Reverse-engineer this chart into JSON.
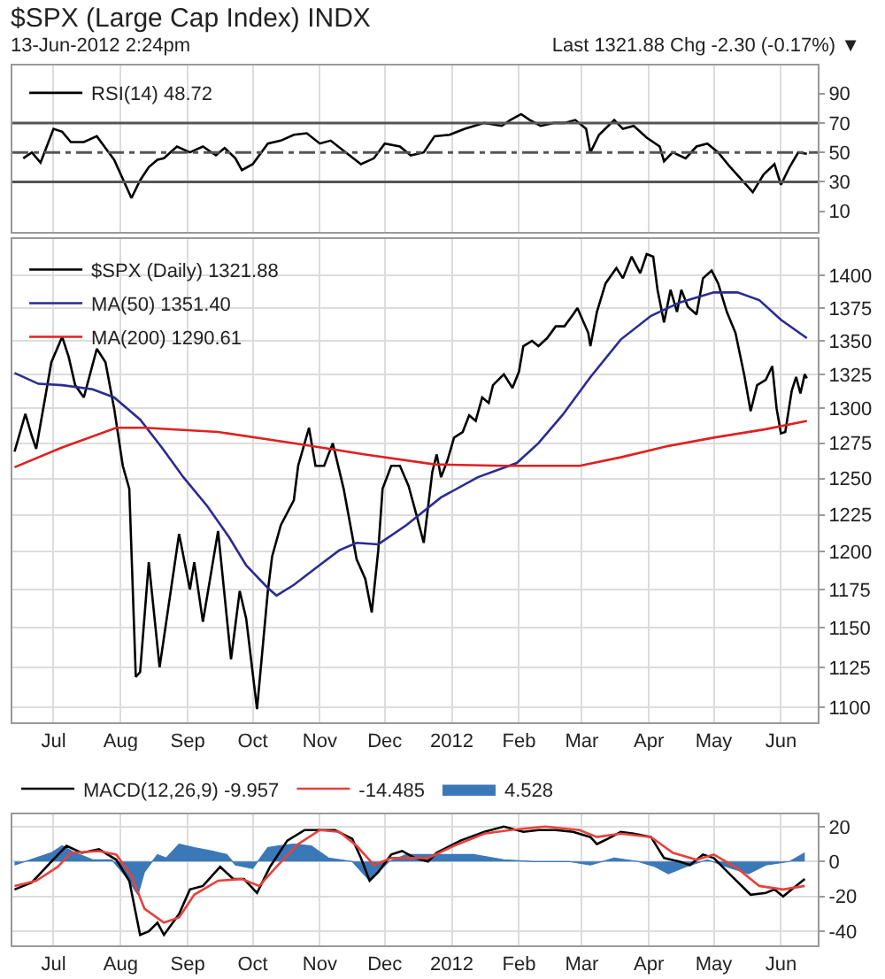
{
  "chart_data": [
    {
      "type": "line",
      "title": "$SPX (Large Cap Index) INDX",
      "subtitle": "13-Jun-2012 2:24pm",
      "annotations": [
        "Last 1321.88  Chg -2.30 (-0.17%) ▼"
      ],
      "xlim": [
        "2011-06-12",
        "2012-06-18"
      ],
      "xticks": [
        {
          "value": "2011-07-01",
          "label": null
        },
        {
          "value": "2011-08-01",
          "label": null
        },
        {
          "value": "2011-09-01",
          "label": null
        },
        {
          "value": "2011-10-01",
          "label": null
        },
        {
          "value": "2011-11-01",
          "label": null
        },
        {
          "value": "2011-12-01",
          "label": null
        },
        {
          "value": "2012-01-01",
          "label": null
        },
        {
          "value": "2012-02-01",
          "label": null
        },
        {
          "value": "2012-03-01",
          "label": null
        },
        {
          "value": "2012-04-01",
          "label": null
        },
        {
          "value": "2012-05-01",
          "label": null
        },
        {
          "value": "2012-06-01",
          "label": null
        }
      ],
      "ylim": [
        -4,
        109
      ],
      "yticks": [
        10,
        30,
        50,
        70,
        90
      ],
      "grid": true,
      "legend": "top left",
      "tick_labels": "y",
      "ref_lines": [
        {
          "axis": "y",
          "value": 70,
          "color": "#555555"
        },
        {
          "axis": "y",
          "value": 30,
          "color": "#555555"
        },
        {
          "axis": "y",
          "value": 50,
          "color": "#555555",
          "line_style": "dashed"
        }
      ],
      "series": [
        {
          "name": "RSI(14) 48.72",
          "color": "#000000",
          "x": [
            "2011-06-17",
            "2011-06-21",
            "2011-06-25",
            "2011-07-01",
            "2011-07-05",
            "2011-07-09",
            "2011-07-15",
            "2011-07-21",
            "2011-07-25",
            "2011-07-29",
            "2011-08-06",
            "2011-08-10",
            "2011-08-14",
            "2011-08-18",
            "2011-08-21",
            "2011-08-27",
            "2011-09-02",
            "2011-09-08",
            "2011-09-14",
            "2011-09-18",
            "2011-09-23",
            "2011-09-26",
            "2011-10-01",
            "2011-10-08",
            "2011-10-14",
            "2011-10-20",
            "2011-10-26",
            "2011-11-01",
            "2011-11-06",
            "2011-11-13",
            "2011-11-20",
            "2011-11-26",
            "2011-12-01",
            "2011-12-08",
            "2011-12-13",
            "2011-12-19",
            "2011-12-24",
            "2011-12-31",
            "2012-01-07",
            "2012-01-16",
            "2012-01-24",
            "2012-01-28",
            "2012-02-02",
            "2012-02-06",
            "2012-02-11",
            "2012-02-17",
            "2012-02-22",
            "2012-02-27",
            "2012-03-03",
            "2012-03-05",
            "2012-03-09",
            "2012-03-16",
            "2012-03-20",
            "2012-03-25",
            "2012-03-31",
            "2012-04-06",
            "2012-04-08",
            "2012-04-12",
            "2012-04-18",
            "2012-04-23",
            "2012-04-28",
            "2012-05-03",
            "2012-05-08",
            "2012-05-19",
            "2012-05-24",
            "2012-05-29",
            "2012-06-01",
            "2012-06-05",
            "2012-06-09",
            "2012-06-13"
          ],
          "values": [
            46,
            50,
            43,
            66,
            64,
            57,
            57,
            61,
            53,
            45,
            19,
            31,
            40,
            45,
            46,
            54,
            50,
            54,
            48,
            53,
            46,
            38,
            42,
            56,
            58,
            62,
            63,
            56,
            58,
            50,
            42,
            46,
            56,
            54,
            48,
            50,
            61,
            62,
            66,
            70,
            68,
            72,
            76,
            72,
            68,
            70,
            70,
            72,
            66,
            50,
            62,
            72,
            66,
            68,
            60,
            54,
            44,
            50,
            46,
            54,
            56,
            50,
            41,
            23,
            35,
            42,
            28,
            40,
            50,
            49
          ]
        }
      ]
    },
    {
      "type": "line",
      "xlim": [
        "2011-06-12",
        "2012-06-18"
      ],
      "xticks": [
        {
          "value": "2011-07-01",
          "label": "Jul"
        },
        {
          "value": "2011-08-01",
          "label": "Aug"
        },
        {
          "value": "2011-09-01",
          "label": "Sep"
        },
        {
          "value": "2011-10-01",
          "label": "Oct"
        },
        {
          "value": "2011-11-01",
          "label": "Nov"
        },
        {
          "value": "2011-12-01",
          "label": "Dec"
        },
        {
          "value": "2012-01-01",
          "label": "2012"
        },
        {
          "value": "2012-02-01",
          "label": "Feb"
        },
        {
          "value": "2012-03-01",
          "label": "Mar"
        },
        {
          "value": "2012-04-01",
          "label": "Apr"
        },
        {
          "value": "2012-05-01",
          "label": "May"
        },
        {
          "value": "2012-06-01",
          "label": "Jun"
        }
      ],
      "ylim": [
        1091,
        1429
      ],
      "yticks": [
        1100,
        1125,
        1150,
        1175,
        1200,
        1225,
        1250,
        1275,
        1300,
        1325,
        1350,
        1375,
        1400
      ],
      "log": "y",
      "grid": true,
      "legend": "top left",
      "series": [
        {
          "name": "$SPX (Daily) 1321.88",
          "color": "#000000",
          "x": [
            "2011-06-13",
            "2011-06-18",
            "2011-06-21",
            "2011-06-23",
            "2011-06-30",
            "2011-07-05",
            "2011-07-08",
            "2011-07-11",
            "2011-07-15",
            "2011-07-21",
            "2011-07-25",
            "2011-07-29",
            "2011-08-02",
            "2011-08-05",
            "2011-08-08",
            "2011-08-10",
            "2011-08-14",
            "2011-08-19",
            "2011-08-28",
            "2011-09-02",
            "2011-09-04",
            "2011-09-08",
            "2011-09-15",
            "2011-09-21",
            "2011-09-25",
            "2011-09-28",
            "2011-10-03",
            "2011-10-08",
            "2011-10-10",
            "2011-10-14",
            "2011-10-20",
            "2011-10-22",
            "2011-10-27",
            "2011-10-30",
            "2011-11-03",
            "2011-11-07",
            "2011-11-12",
            "2011-11-18",
            "2011-11-22",
            "2011-11-25",
            "2011-11-28",
            "2011-11-30",
            "2011-12-04",
            "2011-12-08",
            "2011-12-12",
            "2011-12-16",
            "2011-12-19",
            "2011-12-23",
            "2011-12-25",
            "2011-12-27",
            "2011-12-30",
            "2012-01-02",
            "2012-01-06",
            "2012-01-09",
            "2012-01-12",
            "2012-01-15",
            "2012-01-18",
            "2012-01-20",
            "2012-01-25",
            "2012-01-29",
            "2012-02-01",
            "2012-02-03",
            "2012-02-07",
            "2012-02-10",
            "2012-02-14",
            "2012-02-18",
            "2012-02-22",
            "2012-02-26",
            "2012-02-28",
            "2012-03-04",
            "2012-03-05",
            "2012-03-08",
            "2012-03-12",
            "2012-03-17",
            "2012-03-20",
            "2012-03-24",
            "2012-03-28",
            "2012-03-31",
            "2012-04-03",
            "2012-04-05",
            "2012-04-08",
            "2012-04-11",
            "2012-04-14",
            "2012-04-16",
            "2012-04-19",
            "2012-04-23",
            "2012-04-26",
            "2012-04-30",
            "2012-05-03",
            "2012-05-07",
            "2012-05-11",
            "2012-05-15",
            "2012-05-18",
            "2012-05-21",
            "2012-05-25",
            "2012-05-28",
            "2012-05-30",
            "2012-06-01",
            "2012-06-03",
            "2012-06-06",
            "2012-06-08",
            "2012-06-10",
            "2012-06-12",
            "2012-06-13"
          ],
          "values": [
            1269,
            1296,
            1280,
            1271,
            1334,
            1353,
            1338,
            1317,
            1308,
            1344,
            1334,
            1300,
            1259,
            1243,
            1119,
            1122,
            1193,
            1125,
            1212,
            1175,
            1193,
            1154,
            1214,
            1130,
            1174,
            1156,
            1099,
            1174,
            1197,
            1218,
            1235,
            1259,
            1286,
            1259,
            1259,
            1275,
            1243,
            1195,
            1182,
            1160,
            1201,
            1243,
            1259,
            1259,
            1245,
            1223,
            1206,
            1255,
            1267,
            1251,
            1263,
            1279,
            1283,
            1295,
            1291,
            1308,
            1304,
            1317,
            1325,
            1315,
            1327,
            1346,
            1350,
            1346,
            1352,
            1361,
            1361,
            1370,
            1375,
            1356,
            1346,
            1372,
            1394,
            1406,
            1398,
            1415,
            1402,
            1417,
            1415,
            1389,
            1364,
            1389,
            1372,
            1389,
            1376,
            1370,
            1398,
            1404,
            1394,
            1372,
            1356,
            1325,
            1298,
            1317,
            1321,
            1331,
            1300,
            1282,
            1283,
            1313,
            1323,
            1311,
            1325,
            1322
          ]
        },
        {
          "name": "MA(50) 1351.40",
          "color": "#2b2b8f",
          "x": [
            "2011-06-13",
            "2011-06-24",
            "2011-07-05",
            "2011-07-19",
            "2011-07-29",
            "2011-08-10",
            "2011-08-20",
            "2011-08-30",
            "2011-09-10",
            "2011-09-20",
            "2011-09-28",
            "2011-10-08",
            "2011-10-12",
            "2011-10-20",
            "2011-10-30",
            "2011-11-10",
            "2011-11-18",
            "2011-11-28",
            "2011-12-11",
            "2011-12-27",
            "2012-01-13",
            "2012-01-31",
            "2012-02-10",
            "2012-02-21",
            "2012-03-05",
            "2012-03-19",
            "2012-04-02",
            "2012-04-15",
            "2012-05-01",
            "2012-05-12",
            "2012-05-22",
            "2012-06-01",
            "2012-06-13"
          ],
          "values": [
            1326,
            1318,
            1317,
            1314,
            1308,
            1292,
            1272,
            1251,
            1231,
            1210,
            1191,
            1176,
            1171,
            1178,
            1189,
            1201,
            1206,
            1205,
            1218,
            1237,
            1251,
            1261,
            1275,
            1295,
            1323,
            1351,
            1369,
            1379,
            1387,
            1387,
            1381,
            1366,
            1352
          ]
        },
        {
          "name": "MA(200) 1290.61",
          "color": "#e02020",
          "x": [
            "2011-06-13",
            "2011-07-05",
            "2011-07-30",
            "2011-08-12",
            "2011-09-15",
            "2011-10-20",
            "2011-11-22",
            "2011-12-24",
            "2012-01-25",
            "2012-02-29",
            "2012-03-19",
            "2012-04-10",
            "2012-05-01",
            "2012-05-25",
            "2012-06-13"
          ],
          "values": [
            1258,
            1272,
            1286,
            1286,
            1283,
            1275,
            1267,
            1260,
            1259,
            1259,
            1265,
            1273,
            1279,
            1285,
            1291
          ]
        }
      ]
    },
    {
      "type": "line",
      "xlim": [
        "2011-06-12",
        "2012-06-18"
      ],
      "xticks": [
        {
          "value": "2011-07-01",
          "label": "Jul"
        },
        {
          "value": "2011-08-01",
          "label": "Aug"
        },
        {
          "value": "2011-09-01",
          "label": "Sep"
        },
        {
          "value": "2011-10-01",
          "label": "Oct"
        },
        {
          "value": "2011-11-01",
          "label": "Nov"
        },
        {
          "value": "2011-12-01",
          "label": "Dec"
        },
        {
          "value": "2012-01-01",
          "label": "2012"
        },
        {
          "value": "2012-02-01",
          "label": "Feb"
        },
        {
          "value": "2012-03-01",
          "label": "Mar"
        },
        {
          "value": "2012-04-01",
          "label": "Apr"
        },
        {
          "value": "2012-05-01",
          "label": "May"
        },
        {
          "value": "2012-06-01",
          "label": "Jun"
        }
      ],
      "ylim": [
        -48,
        27
      ],
      "yticks": [
        -40,
        -20,
        0,
        20
      ],
      "grid": true,
      "legend": "top left",
      "series": [
        {
          "name": "MACD(12,26,9) -9.957",
          "color": "#000000",
          "x": [
            "2011-06-13",
            "2011-06-21",
            "2011-06-30",
            "2011-07-07",
            "2011-07-14",
            "2011-07-22",
            "2011-07-30",
            "2011-08-05",
            "2011-08-10",
            "2011-08-14",
            "2011-08-18",
            "2011-08-21",
            "2011-08-28",
            "2011-09-02",
            "2011-09-08",
            "2011-09-16",
            "2011-09-22",
            "2011-09-27",
            "2011-10-03",
            "2011-10-09",
            "2011-10-17",
            "2011-10-25",
            "2011-11-08",
            "2011-11-16",
            "2011-11-20",
            "2011-11-24",
            "2011-11-28",
            "2011-12-04",
            "2011-12-09",
            "2011-12-15",
            "2011-12-21",
            "2011-12-25",
            "2012-01-05",
            "2012-01-16",
            "2012-01-25",
            "2012-02-03",
            "2012-02-10",
            "2012-02-18",
            "2012-02-26",
            "2012-03-05",
            "2012-03-08",
            "2012-03-13",
            "2012-03-19",
            "2012-03-25",
            "2012-04-02",
            "2012-04-08",
            "2012-04-15",
            "2012-04-20",
            "2012-04-26",
            "2012-05-01",
            "2012-05-09",
            "2012-05-18",
            "2012-05-25",
            "2012-05-29",
            "2012-06-02",
            "2012-06-06",
            "2012-06-12"
          ],
          "values": [
            -16,
            -12,
            0,
            9,
            5,
            7,
            1,
            -11,
            -42,
            -40,
            -35,
            -42,
            -30,
            -16,
            -14,
            -3,
            -10,
            -10,
            -18,
            -3,
            12,
            18,
            18,
            13,
            2,
            -11,
            -6,
            4,
            6,
            2,
            0,
            5,
            12,
            17,
            20,
            17,
            18,
            18,
            17,
            14,
            10,
            13,
            17,
            16,
            14,
            2,
            0,
            -2,
            4,
            2,
            -8,
            -19,
            -18,
            -16,
            -20,
            -16,
            -10
          ]
        },
        {
          "name": "-14.485",
          "color": "#e8413c",
          "x": [
            "2011-06-13",
            "2011-06-23",
            "2011-07-03",
            "2011-07-09",
            "2011-07-22",
            "2011-07-30",
            "2011-08-06",
            "2011-08-12",
            "2011-08-21",
            "2011-08-28",
            "2011-09-04",
            "2011-09-15",
            "2011-09-26",
            "2011-10-04",
            "2011-10-12",
            "2011-10-22",
            "2011-11-01",
            "2011-11-10",
            "2011-11-18",
            "2011-11-26",
            "2011-12-04",
            "2011-12-13",
            "2011-12-21",
            "2012-01-02",
            "2012-01-16",
            "2012-01-28",
            "2012-02-13",
            "2012-02-29",
            "2012-03-08",
            "2012-03-19",
            "2012-04-02",
            "2012-04-12",
            "2012-04-23",
            "2012-05-01",
            "2012-05-12",
            "2012-05-22",
            "2012-06-02",
            "2012-06-12"
          ],
          "values": [
            -14,
            -11,
            -3,
            5,
            6,
            4,
            -8,
            -27,
            -35,
            -32,
            -19,
            -11,
            -10,
            -14,
            -3,
            10,
            18,
            17,
            9,
            -2,
            2,
            2,
            2,
            9,
            16,
            18,
            20,
            18,
            14,
            16,
            14,
            5,
            1,
            4,
            -4,
            -14,
            -16,
            -14
          ]
        },
        {
          "name": "4.528",
          "type": "area",
          "color": "#3a78b8",
          "x": [
            "2011-06-13",
            "2011-06-30",
            "2011-07-05",
            "2011-07-11",
            "2011-07-19",
            "2011-07-28",
            "2011-08-03",
            "2011-08-09",
            "2011-08-12",
            "2011-08-18",
            "2011-08-22",
            "2011-08-28",
            "2011-09-04",
            "2011-09-12",
            "2011-09-19",
            "2011-09-23",
            "2011-10-01",
            "2011-10-08",
            "2011-10-13",
            "2011-10-20",
            "2011-10-28",
            "2011-11-05",
            "2011-11-16",
            "2011-11-24",
            "2011-12-03",
            "2011-12-11",
            "2011-12-25",
            "2012-01-11",
            "2012-01-25",
            "2012-02-08",
            "2012-02-24",
            "2012-03-05",
            "2012-03-16",
            "2012-03-27",
            "2012-04-04",
            "2012-04-10",
            "2012-04-18",
            "2012-04-28",
            "2012-05-07",
            "2012-05-17",
            "2012-05-25",
            "2012-06-05",
            "2012-06-12"
          ],
          "values": [
            -2,
            5,
            9,
            5,
            1,
            1,
            -8,
            -19,
            -6,
            4,
            2,
            10,
            8,
            6,
            4,
            -2,
            -4,
            8,
            9,
            10,
            9,
            2,
            0,
            -11,
            0,
            4,
            4,
            4,
            1,
            0,
            0,
            -2,
            2,
            0,
            -3,
            -7,
            -3,
            1,
            -3,
            -7,
            -2,
            0,
            5
          ]
        }
      ]
    }
  ]
}
